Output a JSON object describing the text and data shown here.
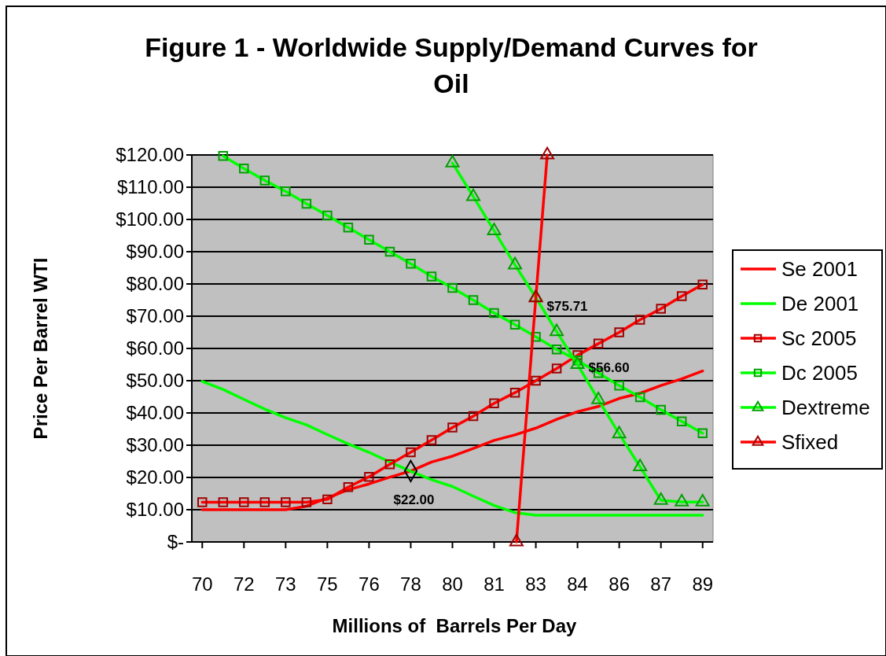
{
  "chart_data": {
    "type": "line",
    "title": "Figure 1 - Worldwide Supply/Demand Curves for Oil",
    "xlabel": "Millions of  Barrels Per Day",
    "ylabel": "Price Per Barrel WTI",
    "x": [
      70,
      70.792,
      71.583,
      72.375,
      73.167,
      73.958,
      74.75,
      75.542,
      76.333,
      77.125,
      77.917,
      78.708,
      79.5,
      80.292,
      81.083,
      81.875,
      82.667,
      83.458,
      84.25,
      85.042,
      85.833,
      86.625,
      87.417,
      88.208,
      89
    ],
    "xlim": [
      69.604,
      89.396
    ],
    "xticks": [
      {
        "value": 70,
        "label": "70"
      },
      {
        "value": 71.583,
        "label": "72"
      },
      {
        "value": 73.167,
        "label": "73"
      },
      {
        "value": 74.75,
        "label": "75"
      },
      {
        "value": 76.333,
        "label": "76"
      },
      {
        "value": 77.917,
        "label": "78"
      },
      {
        "value": 79.5,
        "label": "80"
      },
      {
        "value": 81.083,
        "label": "81"
      },
      {
        "value": 82.667,
        "label": "83"
      },
      {
        "value": 84.25,
        "label": "84"
      },
      {
        "value": 85.833,
        "label": "86"
      },
      {
        "value": 87.417,
        "label": "87"
      },
      {
        "value": 89,
        "label": "89"
      }
    ],
    "ylim": [
      0,
      120
    ],
    "yticks": [
      {
        "value": 0,
        "label": "$-"
      },
      {
        "value": 10,
        "label": "$10.00"
      },
      {
        "value": 20,
        "label": "$20.00"
      },
      {
        "value": 30,
        "label": "$30.00"
      },
      {
        "value": 40,
        "label": "$40.00"
      },
      {
        "value": 50,
        "label": "$50.00"
      },
      {
        "value": 60,
        "label": "$60.00"
      },
      {
        "value": 70,
        "label": "$70.00"
      },
      {
        "value": 80,
        "label": "$80.00"
      },
      {
        "value": 90,
        "label": "$90.00"
      },
      {
        "value": 100,
        "label": "$100.00"
      },
      {
        "value": 110,
        "label": "$110.00"
      },
      {
        "value": 120,
        "label": "$120.00"
      }
    ],
    "grid": "y",
    "legend": "right",
    "series": [
      {
        "name": "Se 2001",
        "color": "#ff0000",
        "marker": "none",
        "values": [
          10,
          10,
          10,
          10,
          10,
          11.1,
          13.6,
          16.2,
          18,
          20.1,
          22,
          24.8,
          26.6,
          29,
          31.5,
          33.2,
          35.3,
          38,
          40.4,
          42,
          44.5,
          46.1,
          48.5,
          50.6,
          53
        ]
      },
      {
        "name": "De 2001",
        "color": "#00ff00",
        "marker": "none",
        "values": [
          49.8,
          47.3,
          44.2,
          41.2,
          38.5,
          36.3,
          33.3,
          30.4,
          27.8,
          24.8,
          21.9,
          19.3,
          17.2,
          14.2,
          11.3,
          9.1,
          8.3,
          8.3,
          8.3,
          8.3,
          8.3,
          8.3,
          8.3,
          8.3,
          8.3
        ]
      },
      {
        "name": "Sc 2005",
        "color": "#ff0000",
        "marker": "square",
        "values": [
          12.3,
          12.3,
          12.3,
          12.3,
          12.3,
          12.3,
          13.2,
          17,
          20.2,
          24.1,
          27.8,
          31.6,
          35.5,
          39,
          43,
          46.3,
          50,
          53.8,
          57.9,
          61.5,
          65,
          68.9,
          72.3,
          76.2,
          79.8
        ]
      },
      {
        "name": "Dc 2005",
        "color": "#00ff00",
        "marker": "square",
        "values": [
          null,
          119.7,
          115.8,
          112.1,
          108.7,
          104.9,
          101.2,
          97.5,
          93.7,
          90,
          86.3,
          82.3,
          78.8,
          75,
          71,
          67.4,
          63.6,
          59.7,
          56.3,
          52.4,
          48.5,
          44.9,
          41,
          37.4,
          33.7
        ]
      },
      {
        "name": "Dextreme",
        "color": "#00ff00",
        "marker": "triangle",
        "values": [
          null,
          null,
          null,
          null,
          null,
          null,
          null,
          null,
          null,
          null,
          null,
          null,
          117.5,
          107.1,
          96.5,
          85.9,
          75.8,
          65.2,
          55,
          44.1,
          33.5,
          23.3,
          12.9,
          12.4,
          12.4
        ]
      },
      {
        "name": "Sfixed",
        "color": "#ff0000",
        "marker": "triangle",
        "x": [
          81.93,
          82.667,
          83.1
        ],
        "values": [
          0,
          75.71,
          120
        ]
      },
      {
        "type": "scatter",
        "color": "#000000",
        "marker": "diamond",
        "x": [
          77.917
        ],
        "values": [
          22
        ]
      }
    ],
    "annotations": [
      {
        "text": "$75.71",
        "x": 82.667,
        "y": 75.71
      },
      {
        "text": "$56.60",
        "x": 84.25,
        "y": 56.6
      },
      {
        "text": "$22.00",
        "x": 77.917,
        "y": 22
      }
    ]
  }
}
